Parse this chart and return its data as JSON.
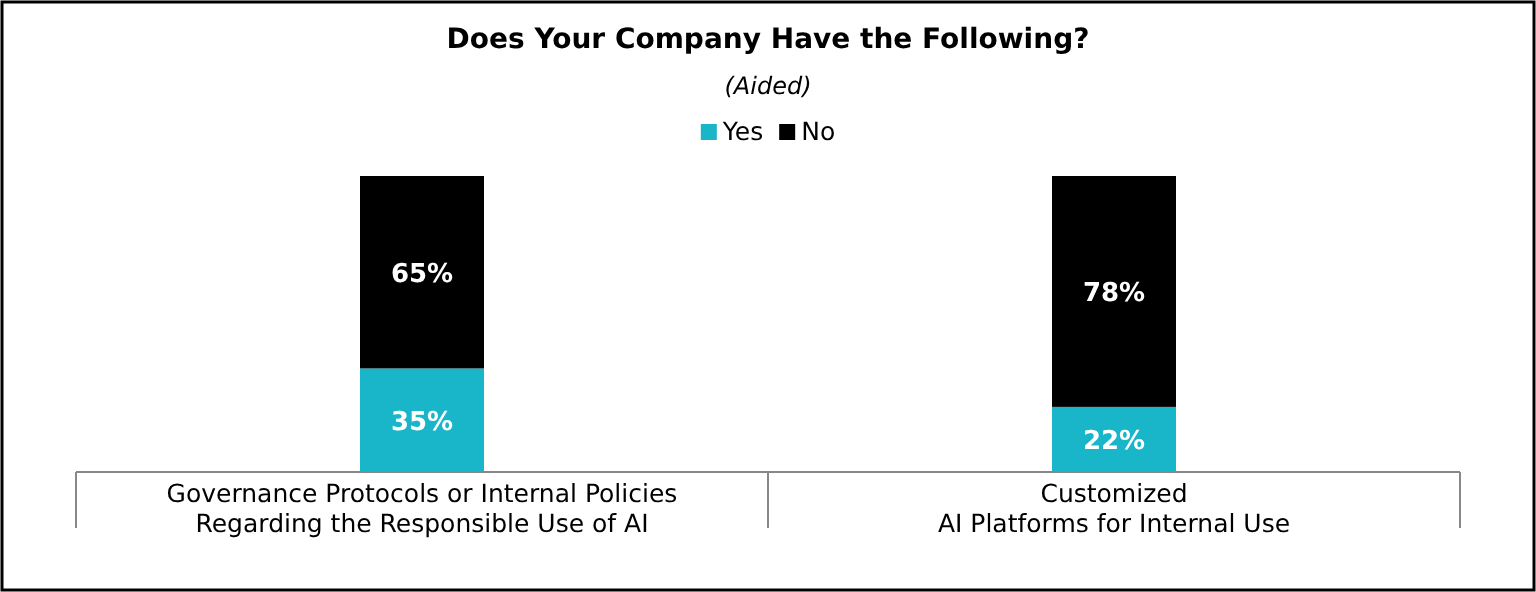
{
  "chart_data": {
    "type": "bar",
    "title": "Does Your Company Have the Following?",
    "subtitle": "(Aided)",
    "stacked": true,
    "legend": "top",
    "categories": [
      "Governance Protocols or Internal Policies\nRegarding the Responsible Use of AI",
      "Customized\nAI Platforms for Internal Use"
    ],
    "series": [
      {
        "name": "Yes",
        "color": "#19b5c8",
        "values": [
          35,
          22
        ],
        "value_labels": [
          "35%",
          "22%"
        ]
      },
      {
        "name": "No",
        "color": "#000000",
        "values": [
          65,
          78
        ],
        "value_labels": [
          "65%",
          "78%"
        ]
      }
    ]
  }
}
